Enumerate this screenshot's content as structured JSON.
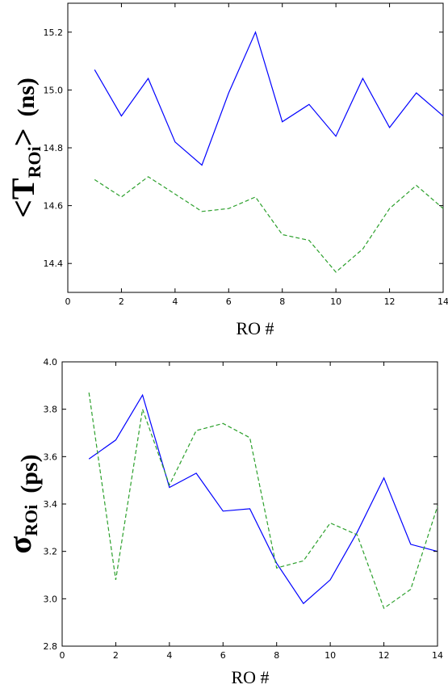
{
  "chart_data": [
    {
      "type": "line",
      "xlabel": "RO #",
      "ylabel": {
        "prefix": "<T",
        "subscript": "ROi",
        "suffix": ">",
        "unit": "(ns)"
      },
      "xlim": [
        0,
        14
      ],
      "ylim": [
        14.3,
        15.3
      ],
      "xticks": [
        "0",
        "2",
        "4",
        "6",
        "8",
        "10",
        "12",
        "14"
      ],
      "yticks": [
        "14.4",
        "14.6",
        "14.8",
        "15.0",
        "15.2"
      ],
      "x": [
        1,
        2,
        3,
        4,
        5,
        6,
        7,
        8,
        9,
        10,
        11,
        12,
        13,
        14
      ],
      "series": [
        {
          "color": "#0000ff",
          "style": "solid",
          "values": [
            15.07,
            14.91,
            15.04,
            14.82,
            14.74,
            14.99,
            15.2,
            14.89,
            14.95,
            14.84,
            15.04,
            14.87,
            14.99,
            14.91
          ]
        },
        {
          "color": "#2ca02c",
          "style": "dashed",
          "values": [
            14.69,
            14.63,
            14.7,
            14.64,
            14.58,
            14.59,
            14.63,
            14.5,
            14.48,
            14.37,
            14.45,
            14.59,
            14.67,
            14.59
          ]
        }
      ],
      "grid": false
    },
    {
      "type": "line",
      "xlabel": "RO #",
      "ylabel": {
        "prefix": "σ",
        "subscript": "ROi",
        "suffix": "",
        "unit": "(ps)"
      },
      "xlim": [
        0,
        14
      ],
      "ylim": [
        2.8,
        4.0
      ],
      "xticks": [
        "0",
        "2",
        "4",
        "6",
        "8",
        "10",
        "12",
        "14"
      ],
      "yticks": [
        "2.8",
        "3.0",
        "3.2",
        "3.4",
        "3.6",
        "3.8",
        "4.0"
      ],
      "x": [
        1,
        2,
        3,
        4,
        5,
        6,
        7,
        8,
        9,
        10,
        11,
        12,
        13,
        14
      ],
      "series": [
        {
          "color": "#0000ff",
          "style": "solid",
          "values": [
            3.59,
            3.67,
            3.86,
            3.47,
            3.53,
            3.37,
            3.38,
            3.15,
            2.98,
            3.08,
            3.28,
            3.51,
            3.23,
            3.2
          ]
        },
        {
          "color": "#2ca02c",
          "style": "dashed",
          "values": [
            3.87,
            3.08,
            3.8,
            3.48,
            3.71,
            3.74,
            3.68,
            3.13,
            3.16,
            3.32,
            3.27,
            2.96,
            3.04,
            3.39
          ]
        }
      ],
      "grid": false
    }
  ]
}
